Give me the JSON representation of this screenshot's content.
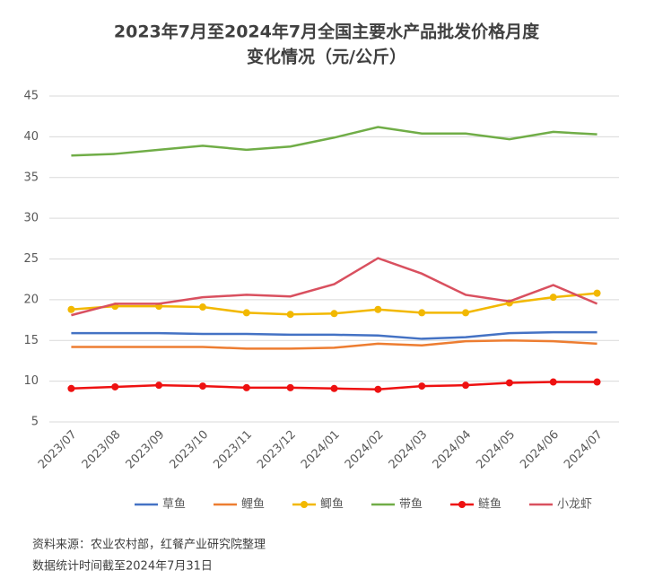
{
  "chart_data": {
    "type": "line",
    "title": [
      "2023年7月至2024年7月全国主要水产品批发价格月度",
      "变化情况（元/公斤）"
    ],
    "notes": [
      "资料来源：农业农村部，红餐产业研究院整理",
      "数据统计时间截至2024年7月31日"
    ],
    "categories": [
      "2023/07",
      "2023/08",
      "2023/09",
      "2023/10",
      "2023/11",
      "2023/12",
      "2024/01",
      "2024/02",
      "2024/03",
      "2024/04",
      "2024/05",
      "2024/06",
      "2024/07"
    ],
    "ylim": [
      5,
      45
    ],
    "yticks": [
      5,
      10,
      15,
      20,
      25,
      30,
      35,
      40,
      45
    ],
    "grid": true,
    "series": [
      {
        "name": "草鱼",
        "color": "#4472c4",
        "markers": false,
        "values": [
          15.9,
          15.9,
          15.9,
          15.8,
          15.8,
          15.7,
          15.7,
          15.6,
          15.2,
          15.4,
          15.9,
          16.0,
          16.0
        ]
      },
      {
        "name": "鲤鱼",
        "color": "#ed7d31",
        "markers": false,
        "values": [
          14.2,
          14.2,
          14.2,
          14.2,
          14.0,
          14.0,
          14.1,
          14.6,
          14.4,
          14.9,
          15.0,
          14.9,
          14.6
        ]
      },
      {
        "name": "鲫鱼",
        "color": "#f2b800",
        "markers": true,
        "values": [
          18.8,
          19.2,
          19.2,
          19.1,
          18.4,
          18.2,
          18.3,
          18.8,
          18.4,
          18.4,
          19.6,
          20.3,
          20.8
        ]
      },
      {
        "name": "带鱼",
        "color": "#70ad47",
        "markers": false,
        "values": [
          37.7,
          37.9,
          38.4,
          38.9,
          38.4,
          38.8,
          39.9,
          41.2,
          40.4,
          40.4,
          39.7,
          40.6,
          40.3
        ]
      },
      {
        "name": "鲢鱼",
        "color": "#ee1111",
        "markers": true,
        "values": [
          9.1,
          9.3,
          9.5,
          9.4,
          9.2,
          9.2,
          9.1,
          9.0,
          9.4,
          9.5,
          9.8,
          9.9,
          9.9
        ]
      },
      {
        "name": "小龙虾",
        "color": "#d9505f",
        "markers": false,
        "values": [
          18.1,
          19.5,
          19.5,
          20.3,
          20.6,
          20.4,
          21.9,
          25.1,
          23.2,
          20.6,
          19.8,
          21.8,
          19.5
        ]
      }
    ]
  }
}
